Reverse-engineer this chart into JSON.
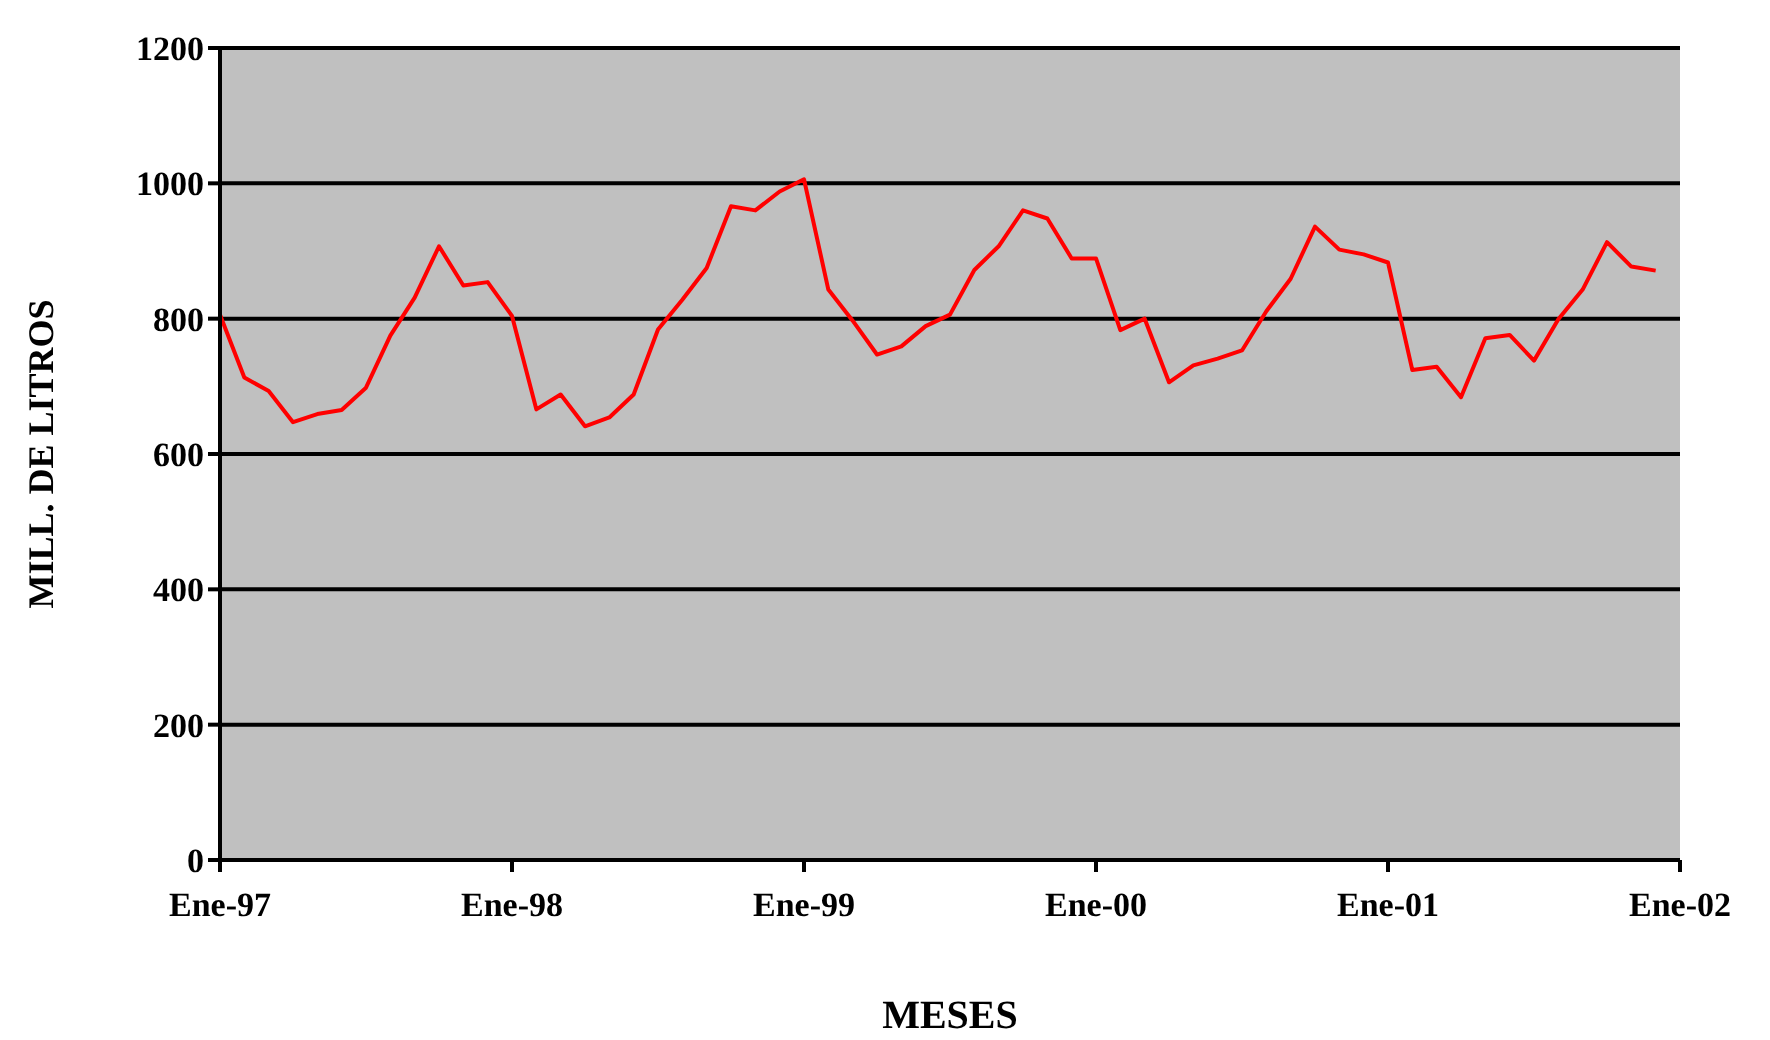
{
  "chart_data": {
    "type": "line",
    "xlabel": "MESES",
    "ylabel": "MILL. DE LITROS",
    "x": [
      "1997-01",
      "1997-02",
      "1997-03",
      "1997-04",
      "1997-05",
      "1997-06",
      "1997-07",
      "1997-08",
      "1997-09",
      "1997-10",
      "1997-11",
      "1997-12",
      "1998-01",
      "1998-02",
      "1998-03",
      "1998-04",
      "1998-05",
      "1998-06",
      "1998-07",
      "1998-08",
      "1998-09",
      "1998-10",
      "1998-11",
      "1998-12",
      "1999-01",
      "1999-02",
      "1999-03",
      "1999-04",
      "1999-05",
      "1999-06",
      "1999-07",
      "1999-08",
      "1999-09",
      "1999-10",
      "1999-11",
      "1999-12",
      "2000-01",
      "2000-02",
      "2000-03",
      "2000-04",
      "2000-05",
      "2000-06",
      "2000-07",
      "2000-08",
      "2000-09",
      "2000-10",
      "2000-11",
      "2000-12",
      "2001-01",
      "2001-02",
      "2001-03",
      "2001-04",
      "2001-05",
      "2001-06",
      "2001-07",
      "2001-08",
      "2001-09",
      "2001-10",
      "2001-11",
      "2001-12"
    ],
    "series": [
      {
        "color": "#ff0000",
        "values": [
          806,
          713,
          693,
          647,
          659,
          665,
          698,
          775,
          831,
          907,
          849,
          854,
          804,
          666,
          688,
          641,
          654,
          688,
          784,
          828,
          875,
          966,
          960,
          988,
          1006,
          843,
          797,
          747,
          759,
          789,
          806,
          872,
          907,
          960,
          948,
          889,
          889,
          783,
          800,
          706,
          731,
          741,
          753,
          811,
          859,
          936,
          902,
          895,
          883,
          724,
          729,
          684,
          771,
          776,
          738,
          799,
          843,
          913,
          877,
          871
        ]
      }
    ],
    "xlim": [
      "1997-01",
      "2002-01"
    ],
    "xticks": [
      {
        "value": "1997-01",
        "label": "Ene-97"
      },
      {
        "value": "1998-01",
        "label": "Ene-98"
      },
      {
        "value": "1999-01",
        "label": "Ene-99"
      },
      {
        "value": "2000-01",
        "label": "Ene-00"
      },
      {
        "value": "2001-01",
        "label": "Ene-01"
      },
      {
        "value": "2002-01",
        "label": "Ene-02"
      }
    ],
    "ylim": [
      0,
      1200
    ],
    "yticks": [
      0,
      200,
      400,
      600,
      800,
      1000,
      1200
    ],
    "grid": "y",
    "legend": false,
    "marker": "none",
    "line_style": "solid"
  }
}
